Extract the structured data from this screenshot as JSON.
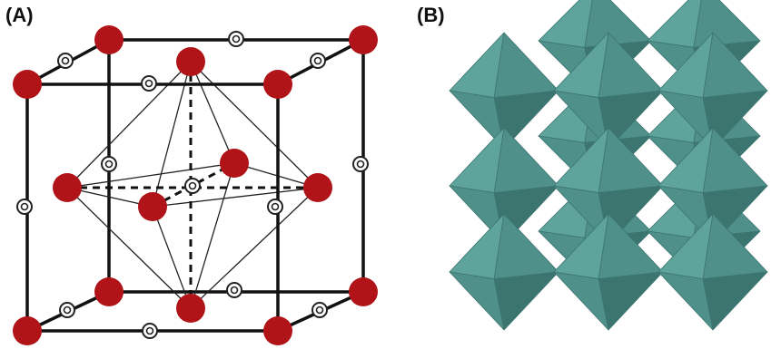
{
  "panels": {
    "a": {
      "label": "(A)"
    },
    "b": {
      "label": "(B)"
    }
  },
  "colors": {
    "large_atom": "#b01419",
    "small_atom_ring": "#222222",
    "cell_edge": "#111111",
    "octahedron_face_light": "#5fa39d",
    "octahedron_face_mid": "#4f908a",
    "octahedron_face_dark": "#3c7470",
    "background": "#ffffff"
  }
}
